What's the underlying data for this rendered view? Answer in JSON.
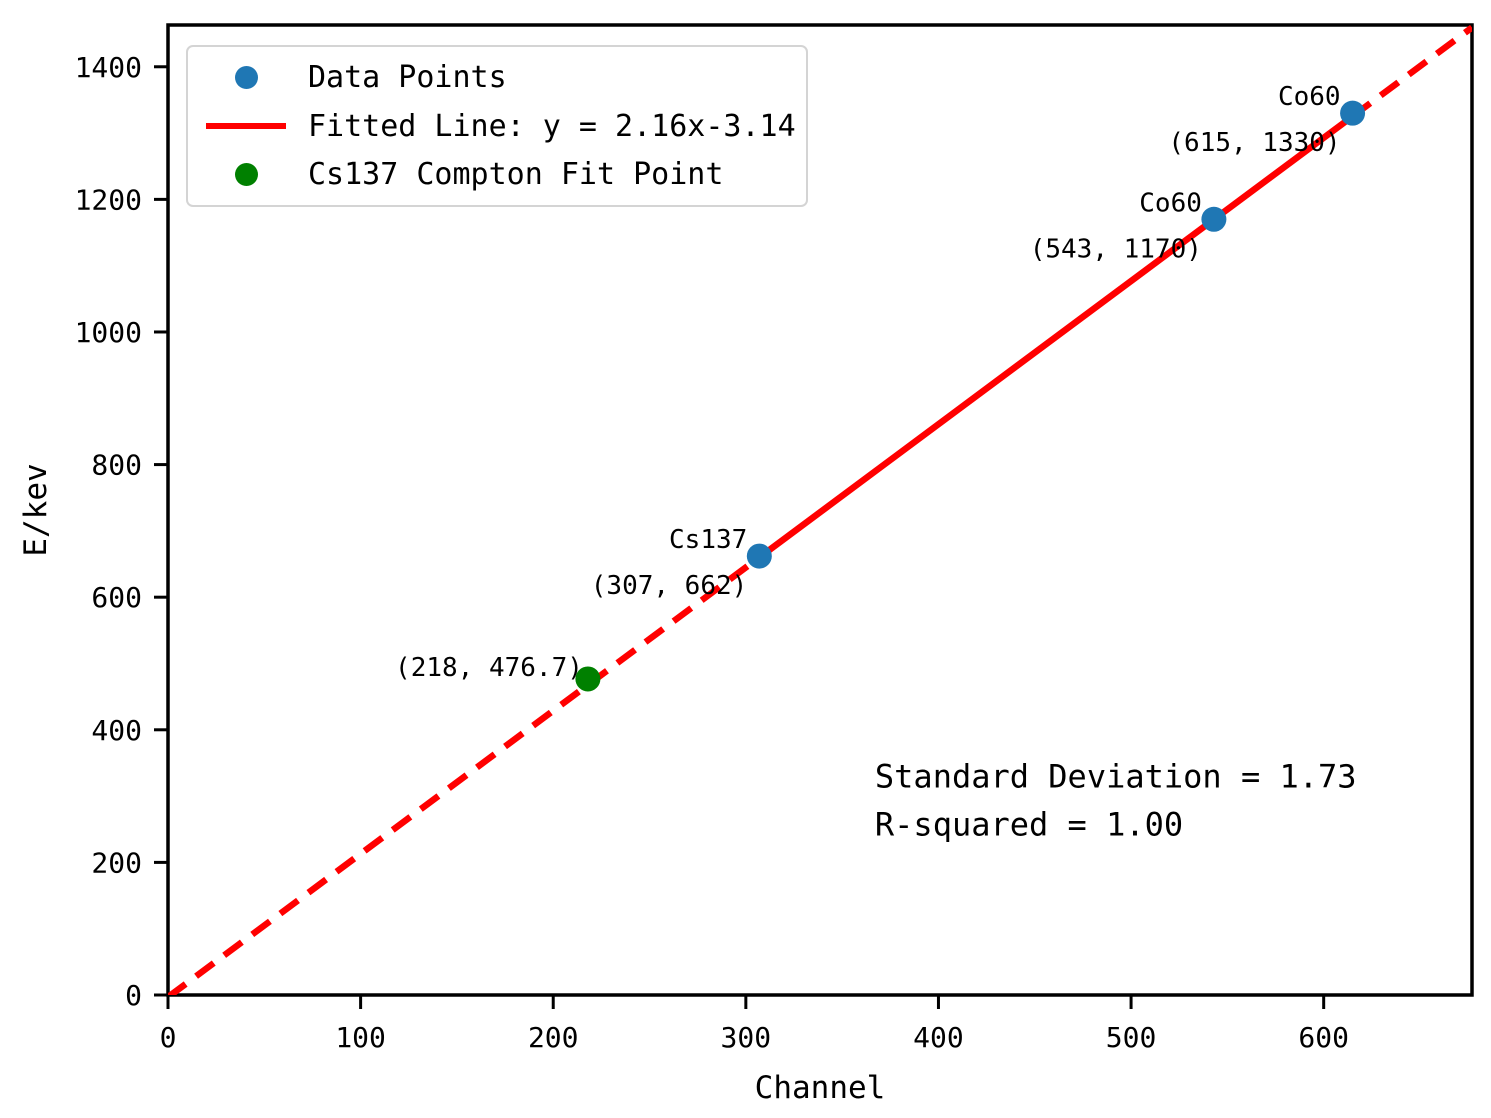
{
  "chart_data": {
    "type": "scatter",
    "title": "",
    "xlabel": "Channel",
    "ylabel": "E/kev",
    "xlim": [
      0,
      677
    ],
    "ylim": [
      0,
      1463
    ],
    "xticks": [
      0,
      100,
      200,
      300,
      400,
      500,
      600
    ],
    "yticks": [
      0,
      200,
      400,
      600,
      800,
      1000,
      1200,
      1400
    ],
    "grid": false,
    "legend_position": "upper left",
    "series": [
      {
        "name": "Data Points",
        "type": "scatter",
        "color": "#1f77b4",
        "points": [
          {
            "x": 307,
            "y": 662,
            "source": "Cs137"
          },
          {
            "x": 543,
            "y": 1170,
            "source": "Co60"
          },
          {
            "x": 615,
            "y": 1330,
            "source": "Co60"
          }
        ]
      },
      {
        "name": "Fitted Line: y = 2.16x-3.14",
        "type": "line",
        "color": "#ff0000",
        "slope": 2.16,
        "intercept": -3.14,
        "solid_range": [
          307,
          615
        ],
        "dashed_ranges": [
          [
            0,
            307
          ],
          [
            615,
            677
          ]
        ]
      },
      {
        "name": "Cs137 Compton Fit Point",
        "type": "scatter",
        "color": "#008000",
        "points": [
          {
            "x": 218,
            "y": 476.7
          }
        ]
      }
    ],
    "annotations": [
      {
        "lines": [
          "Co60",
          "(615, 1330)"
        ],
        "x": 615,
        "y": 1330,
        "ha": "right"
      },
      {
        "lines": [
          "Co60",
          "(543, 1170)"
        ],
        "x": 543,
        "y": 1170,
        "ha": "right"
      },
      {
        "lines": [
          "Cs137",
          "(307, 662)"
        ],
        "x": 307,
        "y": 662,
        "ha": "right"
      },
      {
        "lines": [
          "(218, 476.7)"
        ],
        "x": 218,
        "y": 476.7,
        "ha": "right"
      },
      {
        "lines": [
          "Standard Deviation = 1.73",
          "R-squared = 1.00"
        ],
        "x": 367,
        "y": 358,
        "ha": "left"
      }
    ],
    "stats": {
      "standard_deviation": "1.73",
      "r_squared": "1.00"
    }
  }
}
